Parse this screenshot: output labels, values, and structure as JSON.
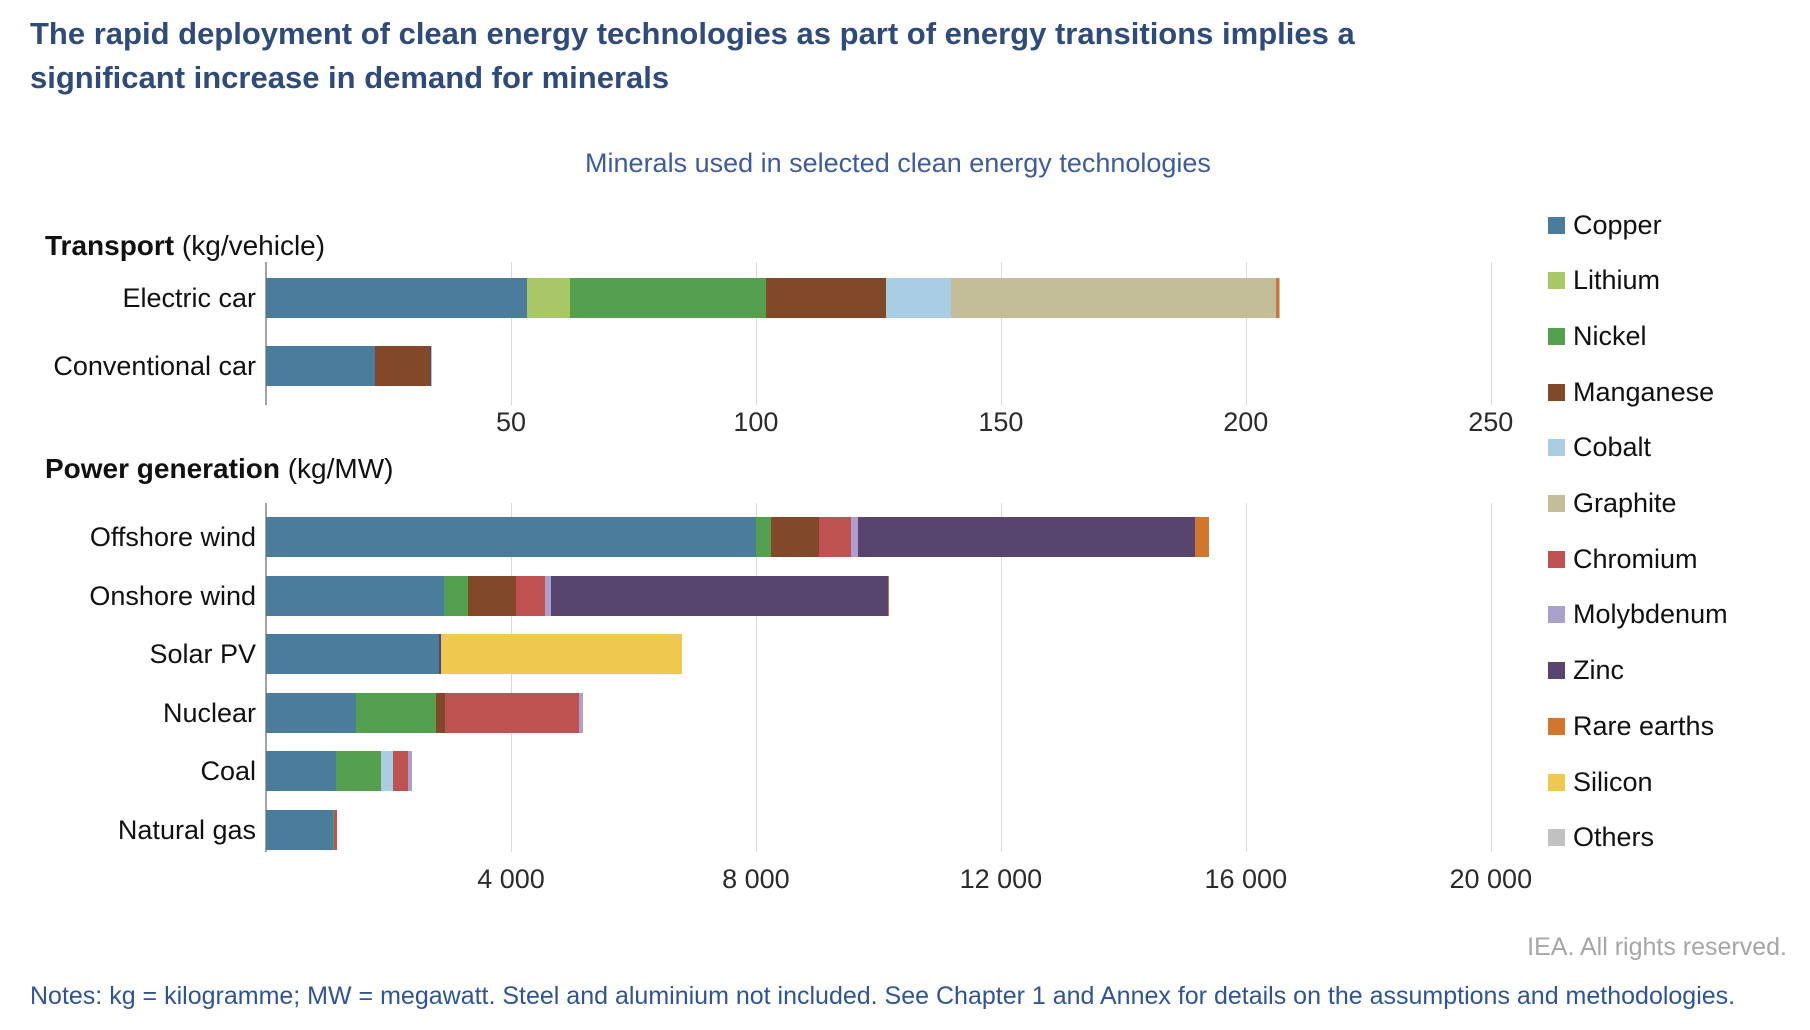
{
  "page": {
    "title": "The rapid deployment of clean energy technologies as part of energy transitions implies a significant increase in demand for minerals",
    "chart_title": "Minerals used in selected clean energy technologies",
    "attribution": "IEA. All rights reserved.",
    "notes": "Notes: kg = kilogramme; MW = megawatt. Steel and aluminium not included. See Chapter 1 and Annex for details on the assumptions and methodologies."
  },
  "colors": {
    "title_text": "#2e4b7c",
    "subtitle_text": "#3d5c9e",
    "notes_text": "#2f5496",
    "attribution_text": "#a6a6a6",
    "gridline": "#d9d9d9",
    "axis_line": "#a3a3a3",
    "copper": "#4a7d9b",
    "lithium": "#a8c867",
    "nickel": "#55a04e",
    "manganese": "#81492a",
    "cobalt": "#a9cee4",
    "graphite": "#c3be98",
    "chromium": "#be5251",
    "molybdenum": "#aba0cc",
    "zinc": "#574570",
    "rare_earths": "#d1762f",
    "silicon": "#efc94f",
    "others": "#c1c1c1"
  },
  "legend": [
    {
      "label": "Copper",
      "key": "copper"
    },
    {
      "label": "Lithium",
      "key": "lithium"
    },
    {
      "label": "Nickel",
      "key": "nickel"
    },
    {
      "label": "Manganese",
      "key": "manganese"
    },
    {
      "label": "Cobalt",
      "key": "cobalt"
    },
    {
      "label": "Graphite",
      "key": "graphite"
    },
    {
      "label": "Chromium",
      "key": "chromium"
    },
    {
      "label": "Molybdenum",
      "key": "molybdenum"
    },
    {
      "label": "Zinc",
      "key": "zinc"
    },
    {
      "label": "Rare earths",
      "key": "rare_earths"
    },
    {
      "label": "Silicon",
      "key": "silicon"
    },
    {
      "label": "Others",
      "key": "others"
    }
  ],
  "chart_data": [
    {
      "type": "bar",
      "orientation": "horizontal",
      "stacked": true,
      "grid": true,
      "legend_position": "right",
      "section_title": "Transport",
      "section_unit": " (kg/vehicle)",
      "unit": "kg/vehicle",
      "xlim": [
        0,
        258
      ],
      "ticks": [
        50,
        100,
        150,
        200,
        250
      ],
      "tick_labels": [
        "50",
        "100",
        "150",
        "200",
        "250"
      ],
      "categories": [
        "Electric car",
        "Conventional car"
      ],
      "series": [
        {
          "name": "Copper",
          "key": "copper",
          "values": [
            53.2,
            22.3
          ]
        },
        {
          "name": "Lithium",
          "key": "lithium",
          "values": [
            8.9,
            0
          ]
        },
        {
          "name": "Nickel",
          "key": "nickel",
          "values": [
            39.9,
            0
          ]
        },
        {
          "name": "Manganese",
          "key": "manganese",
          "values": [
            24.5,
            11.2
          ]
        },
        {
          "name": "Cobalt",
          "key": "cobalt",
          "values": [
            13.3,
            0
          ]
        },
        {
          "name": "Graphite",
          "key": "graphite",
          "values": [
            66.3,
            0
          ]
        },
        {
          "name": "Chromium",
          "key": "chromium",
          "values": [
            0,
            0
          ]
        },
        {
          "name": "Molybdenum",
          "key": "molybdenum",
          "values": [
            0,
            0
          ]
        },
        {
          "name": "Zinc",
          "key": "zinc",
          "values": [
            0.1,
            0.1
          ]
        },
        {
          "name": "Rare earths",
          "key": "rare_earths",
          "values": [
            0.5,
            0
          ]
        },
        {
          "name": "Silicon",
          "key": "silicon",
          "values": [
            0,
            0
          ]
        },
        {
          "name": "Others",
          "key": "others",
          "values": [
            0.3,
            0.3
          ]
        }
      ]
    },
    {
      "type": "bar",
      "orientation": "horizontal",
      "stacked": true,
      "grid": true,
      "legend_position": "right",
      "section_title": "Power generation",
      "section_unit": " (kg/MW)",
      "unit": "kg/MW",
      "xlim": [
        0,
        20640
      ],
      "ticks": [
        4000,
        8000,
        12000,
        16000,
        20000
      ],
      "tick_labels": [
        "4 000",
        "8 000",
        "12 000",
        "16 000",
        "20 000"
      ],
      "categories": [
        "Offshore wind",
        "Onshore wind",
        "Solar PV",
        "Nuclear",
        "Coal",
        "Natural gas"
      ],
      "series": [
        {
          "name": "Copper",
          "key": "copper",
          "values": [
            8000,
            2900,
            2822,
            1473,
            1150,
            1100
          ]
        },
        {
          "name": "Lithium",
          "key": "lithium",
          "values": [
            0,
            0,
            0,
            0,
            0,
            0
          ]
        },
        {
          "name": "Nickel",
          "key": "nickel",
          "values": [
            240,
            404,
            0,
            1297,
            721,
            16
          ]
        },
        {
          "name": "Manganese",
          "key": "manganese",
          "values": [
            790,
            780,
            0,
            148,
            0,
            0
          ]
        },
        {
          "name": "Cobalt",
          "key": "cobalt",
          "values": [
            0,
            0,
            0,
            0,
            201,
            0
          ]
        },
        {
          "name": "Graphite",
          "key": "graphite",
          "values": [
            0,
            0,
            0,
            0,
            0,
            0
          ]
        },
        {
          "name": "Chromium",
          "key": "chromium",
          "values": [
            525,
            470,
            0,
            2190,
            254,
            48
          ]
        },
        {
          "name": "Molybdenum",
          "key": "molybdenum",
          "values": [
            109,
            99,
            0,
            71,
            66,
            0
          ]
        },
        {
          "name": "Zinc",
          "key": "zinc",
          "values": [
            5500,
            5500,
            30,
            0,
            0,
            0
          ]
        },
        {
          "name": "Rare earths",
          "key": "rare_earths",
          "values": [
            239,
            14,
            0,
            0,
            0,
            0
          ]
        },
        {
          "name": "Silicon",
          "key": "silicon",
          "values": [
            0,
            0,
            3948,
            0,
            0,
            0
          ]
        },
        {
          "name": "Others",
          "key": "others",
          "values": [
            0,
            0,
            0,
            0,
            0,
            0
          ]
        }
      ]
    }
  ]
}
